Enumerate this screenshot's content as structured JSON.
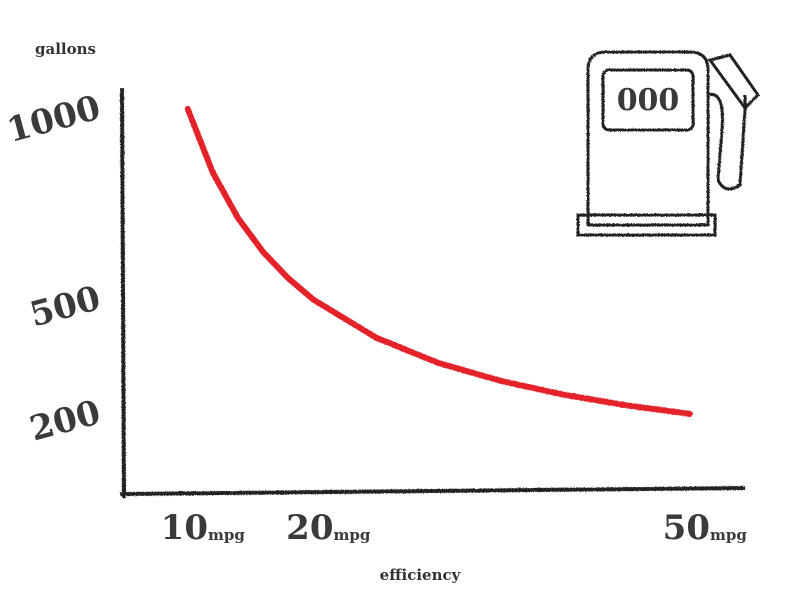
{
  "chart_data": {
    "type": "line",
    "y_label": "gallons",
    "x_label": "efficiency",
    "pump_display": "000",
    "x": [
      10,
      12,
      14,
      16,
      18,
      20,
      25,
      30,
      35,
      40,
      45,
      50
    ],
    "series": [
      {
        "color": "#e3242b",
        "values": [
          1000,
          833,
          714,
          625,
          556,
          500,
          400,
          333,
          286,
          250,
          222,
          200
        ]
      }
    ],
    "xlim": [
      5,
      54.4
    ],
    "ylim": [
      0,
      1050
    ],
    "xticks": [
      {
        "value": 10,
        "label": "10mpg"
      },
      {
        "value": 20,
        "label": "20mpg"
      },
      {
        "value": 50,
        "label": "50mpg"
      }
    ],
    "yticks": [
      200,
      500,
      1000
    ]
  }
}
